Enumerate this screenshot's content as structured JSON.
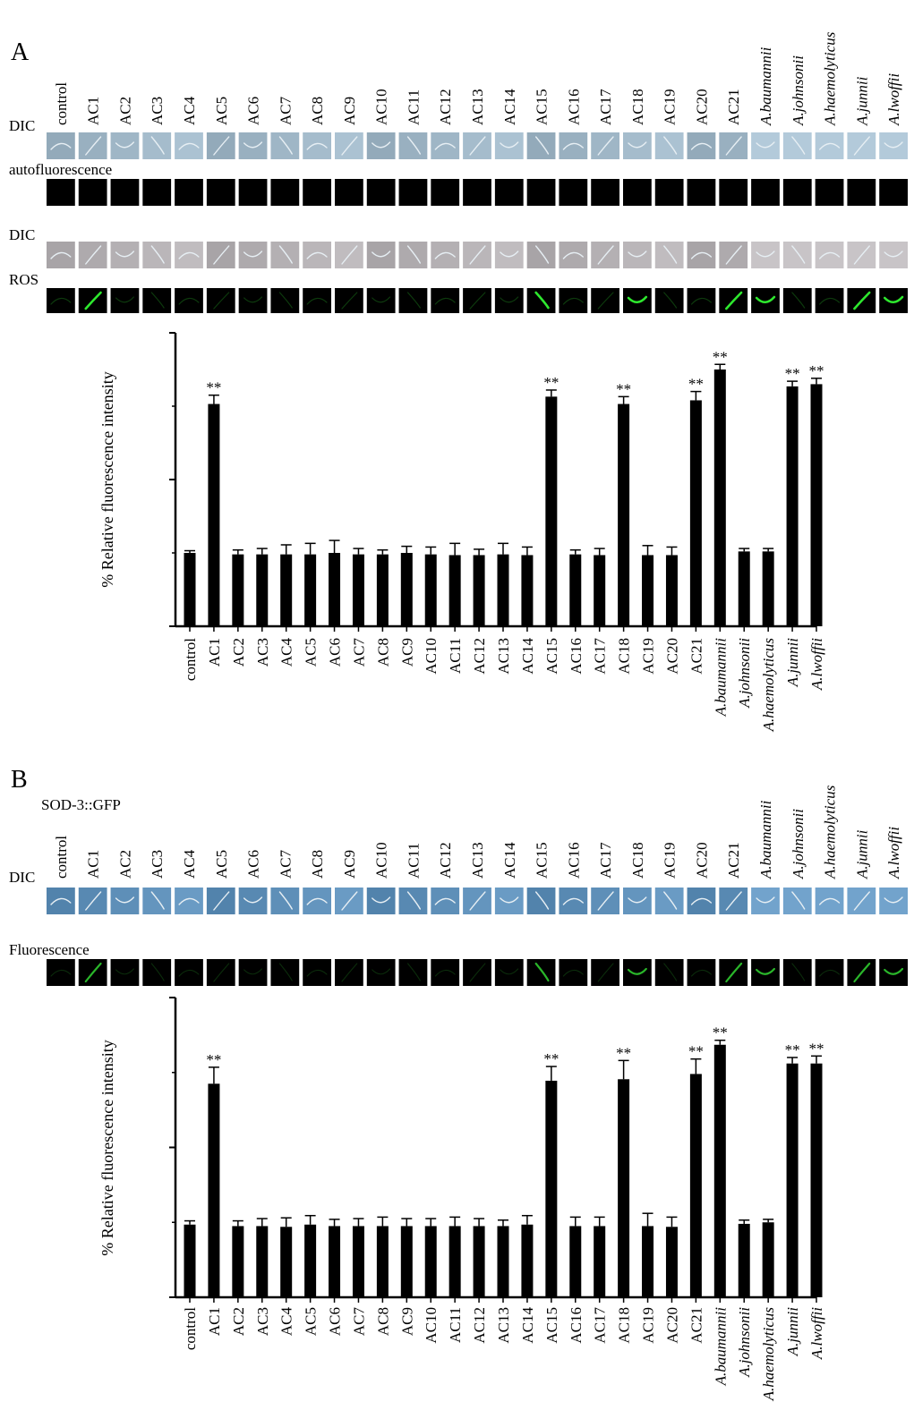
{
  "figure": {
    "panels": [
      {
        "letter": "A",
        "image_rows": [
          {
            "label": "DIC",
            "kind": "dic",
            "tone": "#9fb6c6"
          },
          {
            "label": "autofluorescence",
            "kind": "dark",
            "tone": "#000000"
          },
          {
            "label": "DIC",
            "kind": "dic",
            "tone": "#b4b0b3"
          },
          {
            "label": "ROS",
            "kind": "ros",
            "tone": "#000000"
          }
        ]
      },
      {
        "letter": "B",
        "subtitle": "SOD-3::GFP",
        "image_rows": [
          {
            "label": "DIC",
            "kind": "dic",
            "tone": "#5e8fb8"
          },
          {
            "label": "Fluorescence",
            "kind": "gfp",
            "tone": "#000000"
          }
        ]
      }
    ]
  },
  "chart_data": [
    {
      "type": "bar",
      "panel": "A",
      "categories": [
        "control",
        "AC1",
        "AC2",
        "AC3",
        "AC4",
        "AC5",
        "AC6",
        "AC7",
        "AC8",
        "AC9",
        "AC10",
        "AC11",
        "AC12",
        "AC13",
        "AC14",
        "AC15",
        "AC16",
        "AC17",
        "AC18",
        "AC19",
        "AC20",
        "AC21",
        "A.baumannii",
        "A.johnsonii",
        "A.haemolyticus",
        "A.junnii",
        "A.lwoffii"
      ],
      "values": [
        100,
        303,
        98,
        98,
        98,
        98,
        100,
        98,
        98,
        100,
        98,
        97,
        97,
        98,
        97,
        313,
        98,
        97,
        303,
        97,
        97,
        308,
        350,
        102,
        102,
        327,
        330
      ],
      "errors": [
        3,
        12,
        6,
        8,
        13,
        15,
        17,
        8,
        6,
        9,
        10,
        16,
        8,
        15,
        11,
        9,
        6,
        9,
        10,
        13,
        11,
        12,
        7,
        4,
        4,
        7,
        8
      ],
      "significance": [
        "",
        "**",
        "",
        "",
        "",
        "",
        "",
        "",
        "",
        "",
        "",
        "",
        "",
        "",
        "",
        "**",
        "",
        "",
        "**",
        "",
        "",
        "**",
        "**",
        "",
        "",
        "**",
        "**"
      ],
      "ylabel": "% Relative fluorescence intensity",
      "ylim": [
        0,
        400
      ],
      "yticks": [
        0,
        200,
        400
      ],
      "grid": false
    },
    {
      "type": "bar",
      "panel": "B",
      "categories": [
        "control",
        "AC1",
        "AC2",
        "AC3",
        "AC4",
        "AC5",
        "AC6",
        "AC7",
        "AC8",
        "AC9",
        "AC10",
        "AC11",
        "AC12",
        "AC13",
        "AC14",
        "AC15",
        "AC16",
        "AC17",
        "AC18",
        "AC19",
        "AC20",
        "AC21",
        "A.baumannii",
        "A.johnsonii",
        "A.haemolyticus",
        "A.junnii",
        "A.lwoffii"
      ],
      "values": [
        97,
        285,
        95,
        95,
        94,
        97,
        95,
        95,
        95,
        95,
        95,
        95,
        95,
        95,
        97,
        289,
        95,
        95,
        291,
        95,
        94,
        298,
        337,
        98,
        100,
        312,
        312
      ],
      "errors": [
        5,
        22,
        7,
        10,
        12,
        12,
        9,
        10,
        12,
        10,
        10,
        12,
        10,
        8,
        12,
        19,
        12,
        12,
        25,
        17,
        13,
        20,
        6,
        5,
        4,
        8,
        10
      ],
      "significance": [
        "",
        "**",
        "",
        "",
        "",
        "",
        "",
        "",
        "",
        "",
        "",
        "",
        "",
        "",
        "",
        "**",
        "",
        "",
        "**",
        "",
        "",
        "**",
        "**",
        "",
        "",
        "**",
        "**"
      ],
      "ylabel": "% Relative fluorescence intensity",
      "ylim": [
        0,
        400
      ],
      "yticks": [
        0,
        200,
        400
      ],
      "grid": false
    }
  ]
}
